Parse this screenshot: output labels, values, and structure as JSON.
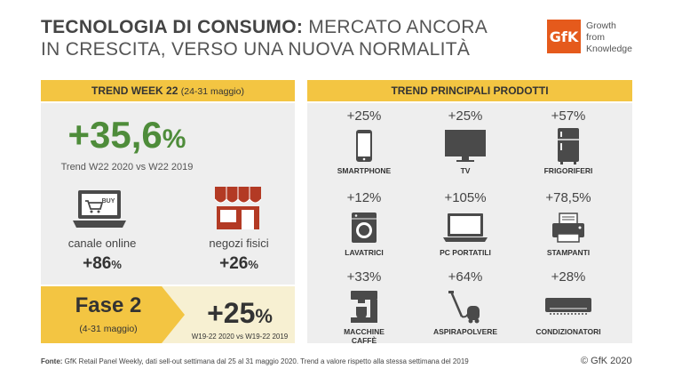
{
  "header": {
    "title_bold": "TECNOLOGIA DI CONSUMO:",
    "title_rest_1": " MERCATO ANCORA",
    "title_line2": "IN CRESCITA, VERSO UNA NUOVA NORMALITÀ"
  },
  "logo": {
    "mark": "GfK",
    "line1": "Growth",
    "line2": "from",
    "line3": "Knowledge",
    "color": "#e55a1c"
  },
  "trend_week": {
    "heading": "TREND WEEK 22",
    "heading_sub": "(24-31 maggio)",
    "value": "+35,6",
    "value_pct": "%",
    "caption": "Trend W22 2020 vs W22 2019",
    "online_label": "canale online",
    "online_value": "+86",
    "online_pct": "%",
    "online_icon": "laptop-cart-icon",
    "online_badge": "BUY",
    "stores_label": "negozi fisici",
    "stores_value": "+26",
    "stores_pct": "%",
    "stores_icon": "store-icon"
  },
  "fase2": {
    "title": "Fase 2",
    "sub": "(4-31 maggio)",
    "value": "+25",
    "value_pct": "%",
    "caption": "W19-22 2020 vs W19-22 2019"
  },
  "products": {
    "heading": "TREND PRINCIPALI PRODOTTI",
    "items": [
      {
        "value": "+25%",
        "label": "SMARTPHONE",
        "icon": "smartphone-icon"
      },
      {
        "value": "+25%",
        "label": "TV",
        "icon": "tv-icon"
      },
      {
        "value": "+57%",
        "label": "FRIGORIFERI",
        "icon": "fridge-icon"
      },
      {
        "value": "+12%",
        "label": "LAVATRICI",
        "icon": "washing-machine-icon"
      },
      {
        "value": "+105%",
        "label": "PC PORTATILI",
        "icon": "laptop-icon"
      },
      {
        "value": "+78,5%",
        "label": "STAMPANTI",
        "icon": "printer-icon"
      },
      {
        "value": "+33%",
        "label": "MACCHINE CAFFÈ",
        "icon": "coffee-machine-icon"
      },
      {
        "value": "+64%",
        "label": "ASPIRAPOLVERE",
        "icon": "vacuum-cleaner-icon"
      },
      {
        "value": "+28%",
        "label": "CONDIZIONATORI",
        "icon": "air-conditioner-icon"
      }
    ]
  },
  "footer": {
    "source_label": "Fonte:",
    "source_text": " GfK Retail Panel Weekly, dati sell-out settimana dal 25 al 31 maggio 2020. Trend a valore rispetto alla stessa settimana del 2019",
    "copyright": "© GfK 2020"
  },
  "colors": {
    "accent_yellow": "#f3c542",
    "growth_green": "#4e8c3a",
    "panel_gray": "#eeeeee",
    "icon_dark": "#4a4a4a",
    "store_red": "#b33a24"
  }
}
